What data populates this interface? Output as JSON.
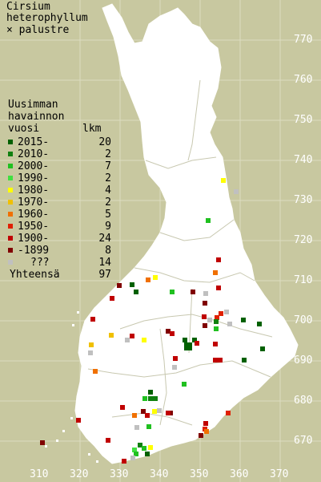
{
  "title": {
    "line1": "Cirsium",
    "line2": "heterophyllum",
    "line3": "× palustre"
  },
  "legend": {
    "header1": "Uusimman",
    "header2": "havainnon",
    "header3": "vuosi",
    "header_count": "lkm",
    "items": [
      {
        "label": "2015-",
        "count": "20",
        "color": "#006000"
      },
      {
        "label": "2010-",
        "count": "2",
        "color": "#108010"
      },
      {
        "label": "2000-",
        "count": "7",
        "color": "#20c020"
      },
      {
        "label": "1990-",
        "count": "2",
        "color": "#40e040"
      },
      {
        "label": "1980-",
        "count": "4",
        "color": "#ffff00"
      },
      {
        "label": "1970-",
        "count": "2",
        "color": "#f0c000"
      },
      {
        "label": "1960-",
        "count": "5",
        "color": "#f07000"
      },
      {
        "label": "1950-",
        "count": "9",
        "color": "#e02000"
      },
      {
        "label": "1900-",
        "count": "24",
        "color": "#c00000"
      },
      {
        "label": "-1899",
        "count": "8",
        "color": "#800000"
      },
      {
        "label": "???",
        "count": "14",
        "color": "#c0c0c0"
      }
    ],
    "total_label": "Yhteensä",
    "total_count": "97"
  },
  "axes": {
    "y_labels": [
      "770",
      "760",
      "750",
      "740",
      "730",
      "720",
      "710",
      "700",
      "690",
      "680",
      "670"
    ],
    "x_labels": [
      "310",
      "320",
      "330",
      "340",
      "350",
      "360",
      "370"
    ]
  },
  "colors": {
    "background": "#c8c8a0",
    "land": "#ffffff",
    "grid": "#e8e8d0"
  }
}
